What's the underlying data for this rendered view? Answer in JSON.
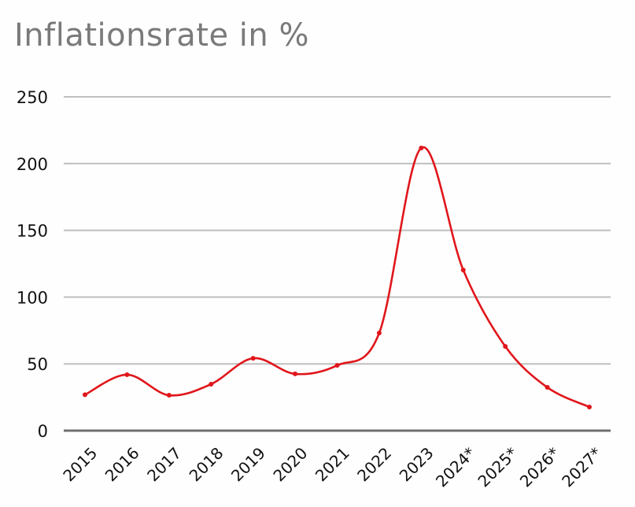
{
  "chart_data": {
    "type": "line",
    "title": "Inflationsrate in %",
    "xlabel": "",
    "ylabel": "",
    "categories": [
      "2015",
      "2016",
      "2017",
      "2018",
      "2019",
      "2020",
      "2021",
      "2022",
      "2023",
      "2024*",
      "2025*",
      "2026*",
      "2027*"
    ],
    "series": [
      {
        "name": "Inflationsrate",
        "color": "#e0161b",
        "values": [
          26.9,
          41.9,
          26.5,
          34.8,
          54.2,
          42.5,
          48.9,
          73.1,
          211.7,
          120.3,
          63.1,
          32.4,
          17.7
        ]
      }
    ],
    "yticks": [
      0,
      50,
      100,
      150,
      200,
      250
    ],
    "ylim": [
      0,
      250
    ],
    "grid": true,
    "legend": "none",
    "smooth": true,
    "markers": true
  },
  "colors": {
    "line": "#e0161b",
    "grid": "#bfbfbf",
    "axis": "#707070",
    "title": "#7a7a7a"
  }
}
